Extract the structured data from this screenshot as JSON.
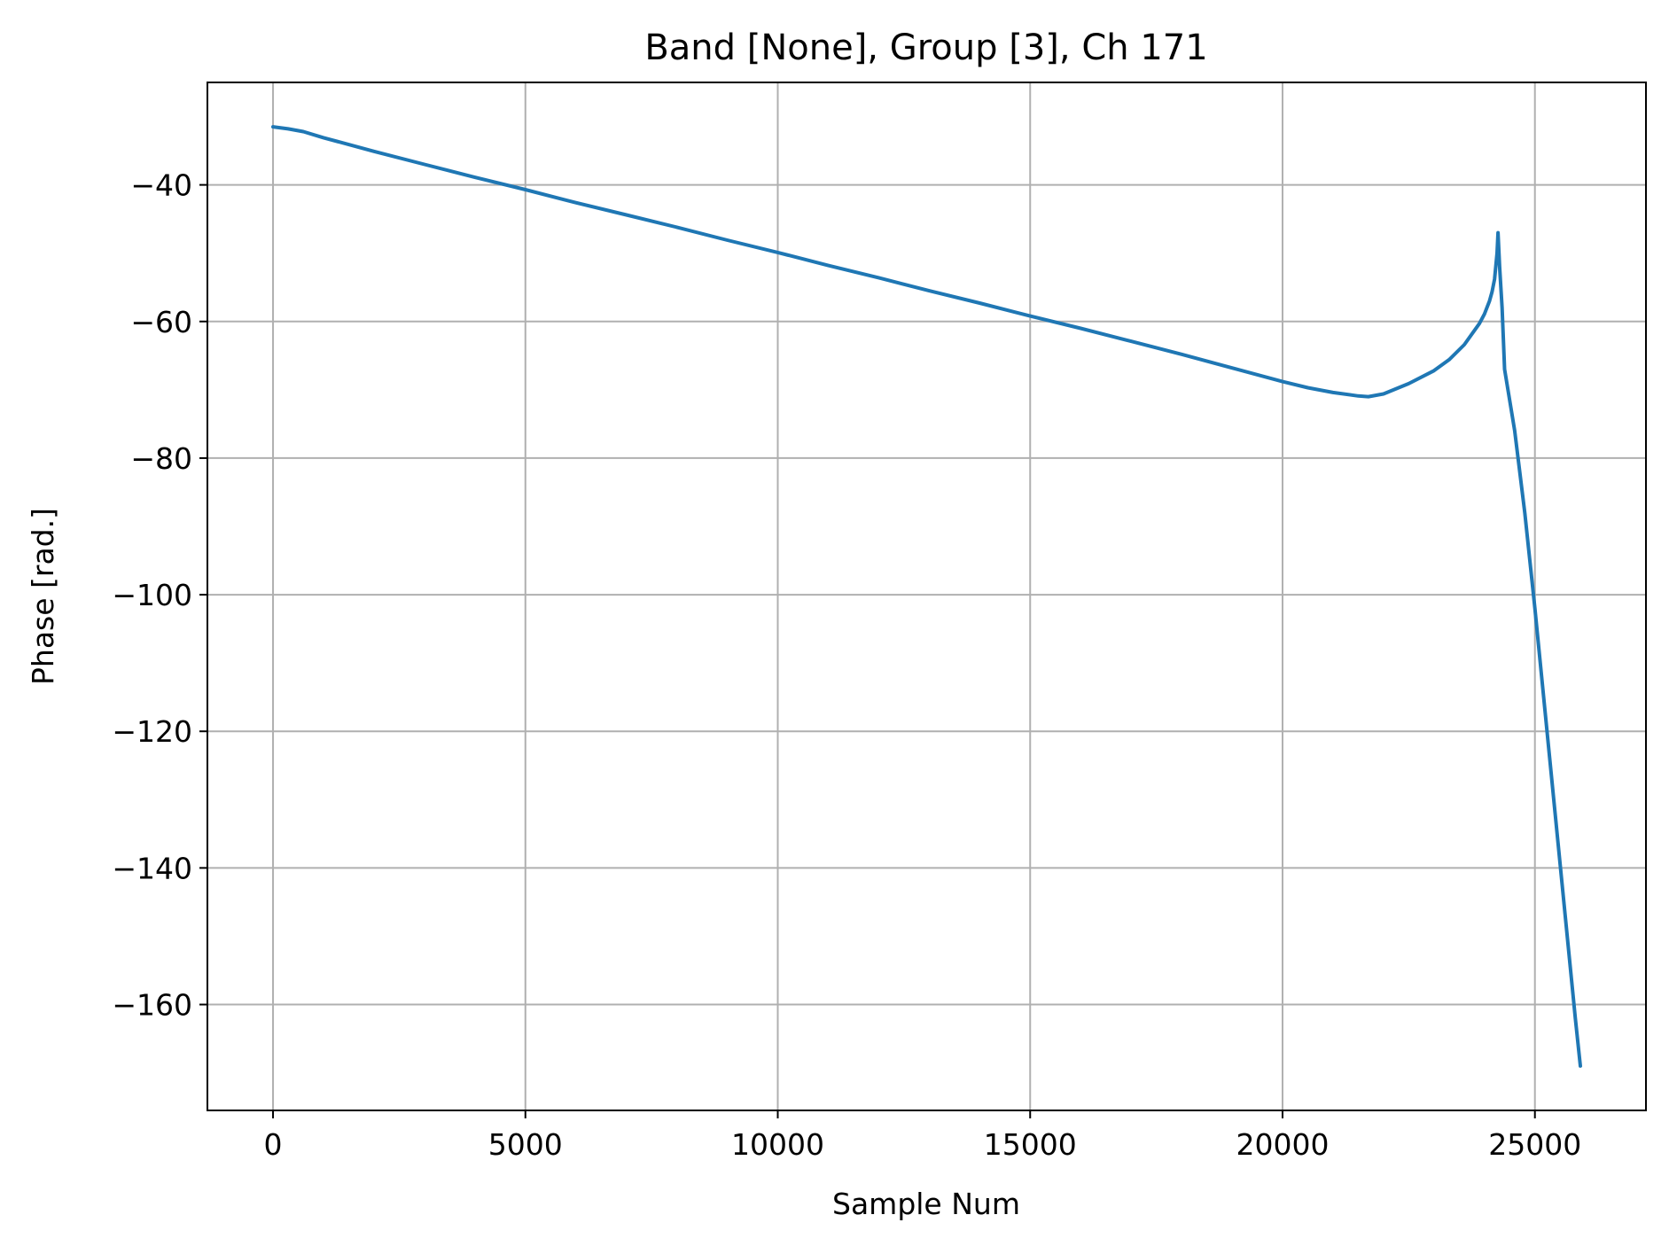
{
  "chart_data": {
    "type": "line",
    "title": "Band [None], Group [3], Ch 171",
    "xlabel": "Sample Num",
    "ylabel": "Phase [rad.]",
    "xlim": [
      -1300,
      27200
    ],
    "ylim": [
      -175.5,
      -25
    ],
    "xticks": [
      0,
      5000,
      10000,
      15000,
      20000,
      25000
    ],
    "xtick_labels": [
      "0",
      "5000",
      "10000",
      "15000",
      "20000",
      "25000"
    ],
    "yticks": [
      -40,
      -60,
      -80,
      -100,
      -120,
      -140,
      -160
    ],
    "ytick_labels": [
      "−40",
      "−60",
      "−80",
      "−100",
      "−120",
      "−140",
      "−160"
    ],
    "grid": true,
    "series": [
      {
        "color": "#1f77b4",
        "x": [
          0,
          300,
          600,
          1000,
          2000,
          3000,
          4000,
          5000,
          6000,
          7000,
          8000,
          9000,
          10000,
          11000,
          12000,
          13000,
          14000,
          15000,
          16000,
          17000,
          18000,
          19000,
          20000,
          20500,
          21000,
          21500,
          21700,
          22000,
          22500,
          23000,
          23300,
          23600,
          23900,
          24000,
          24100,
          24150,
          24200,
          24250,
          24270,
          24300,
          24350,
          24400,
          24600,
          24800,
          25000,
          25200,
          25400,
          25600,
          25800,
          25900
        ],
        "y": [
          -31.5,
          -31.8,
          -32.2,
          -33.1,
          -35.1,
          -37.0,
          -38.9,
          -40.7,
          -42.6,
          -44.4,
          -46.2,
          -48.1,
          -49.9,
          -51.8,
          -53.6,
          -55.5,
          -57.3,
          -59.2,
          -61.0,
          -62.9,
          -64.8,
          -66.8,
          -68.8,
          -69.7,
          -70.4,
          -70.9,
          -71.0,
          -70.6,
          -69.1,
          -67.2,
          -65.6,
          -63.4,
          -60.3,
          -58.9,
          -57.0,
          -55.7,
          -53.8,
          -50.0,
          -47.0,
          -52.0,
          -58.0,
          -67.0,
          -76.0,
          -88.0,
          -102.0,
          -117.0,
          -132.0,
          -147.0,
          -162.0,
          -169.0
        ]
      }
    ]
  }
}
